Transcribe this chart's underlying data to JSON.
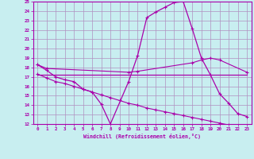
{
  "xlabel": "Windchill (Refroidissement éolien,°C)",
  "background_color": "#c8eef0",
  "grid_color": "#b090c0",
  "line_color": "#aa00aa",
  "xlim": [
    -0.5,
    23.5
  ],
  "ylim": [
    12,
    25
  ],
  "xticks": [
    0,
    1,
    2,
    3,
    4,
    5,
    6,
    7,
    8,
    9,
    10,
    11,
    12,
    13,
    14,
    15,
    16,
    17,
    18,
    19,
    20,
    21,
    22,
    23
  ],
  "yticks": [
    12,
    13,
    14,
    15,
    16,
    17,
    18,
    19,
    20,
    21,
    22,
    23,
    24,
    25
  ],
  "line1_x": [
    0,
    1,
    2,
    3,
    4,
    5,
    6,
    7,
    8,
    10,
    11,
    12,
    13,
    14,
    15,
    16,
    17,
    18,
    19,
    20,
    21,
    22,
    23
  ],
  "line1_y": [
    18.3,
    17.7,
    17.0,
    16.7,
    16.5,
    15.7,
    15.4,
    14.1,
    12.0,
    16.5,
    19.3,
    23.3,
    23.9,
    24.4,
    24.9,
    25.0,
    22.1,
    19.0,
    17.2,
    15.2,
    14.2,
    13.1,
    12.8
  ],
  "line2_x": [
    0,
    1,
    10,
    11,
    17,
    18,
    19,
    20,
    23
  ],
  "line2_y": [
    18.3,
    17.9,
    17.5,
    17.6,
    18.5,
    18.8,
    19.0,
    18.8,
    17.5
  ],
  "line3_x": [
    0,
    21,
    23
  ],
  "line3_y": [
    17.2,
    17.2,
    17.2
  ],
  "line4_x": [
    0,
    1,
    2,
    3,
    4,
    5,
    6,
    7,
    8,
    9,
    10,
    11,
    12,
    13,
    14,
    15,
    16,
    17,
    18,
    19,
    20,
    21,
    22,
    23
  ],
  "line4_y": [
    17.3,
    16.9,
    16.5,
    16.3,
    16.0,
    15.7,
    15.4,
    15.1,
    14.8,
    14.5,
    14.2,
    14.0,
    13.7,
    13.5,
    13.3,
    13.1,
    12.9,
    12.7,
    12.5,
    12.3,
    12.1,
    11.9,
    11.7,
    11.5
  ]
}
